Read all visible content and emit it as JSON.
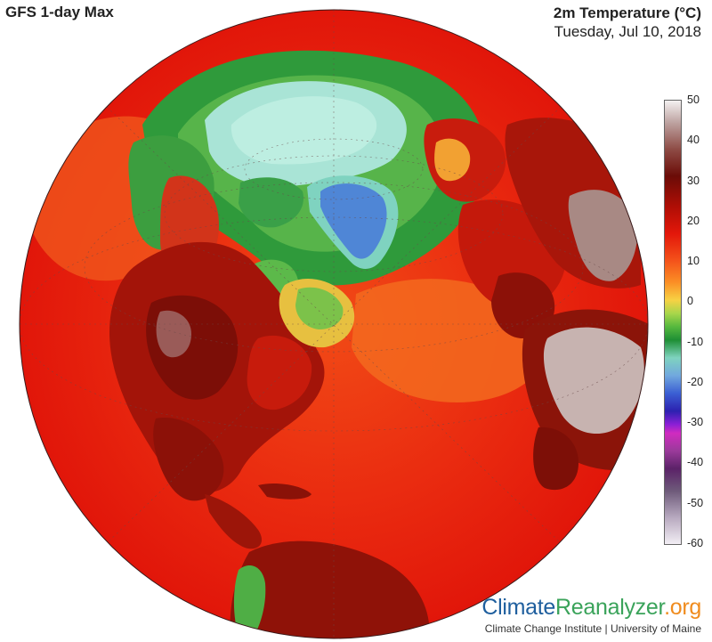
{
  "header": {
    "product": "GFS 1-day Max",
    "variable": "2m Temperature (°C)",
    "date": "Tuesday, Jul 10, 2018"
  },
  "colorbar": {
    "ticks": [
      "50",
      "40",
      "30",
      "20",
      "10",
      "0",
      "-10",
      "-20",
      "-30",
      "-40",
      "-50",
      "-60"
    ],
    "min": -60,
    "max": 50
  },
  "branding": {
    "brand_part1": "Climate",
    "brand_part2": "Reanalyzer",
    "brand_part3": ".org",
    "credit": "Climate Change Institute | University of Maine"
  },
  "colors": {
    "ocean_warm": "#e8230e",
    "land_hot": "#8e1208",
    "arctic_green": "#2f9a3b",
    "ice_cyan": "#a9e4d6",
    "greenland_blue": "#4f86d6",
    "desert_pale": "#c7b3b0"
  }
}
